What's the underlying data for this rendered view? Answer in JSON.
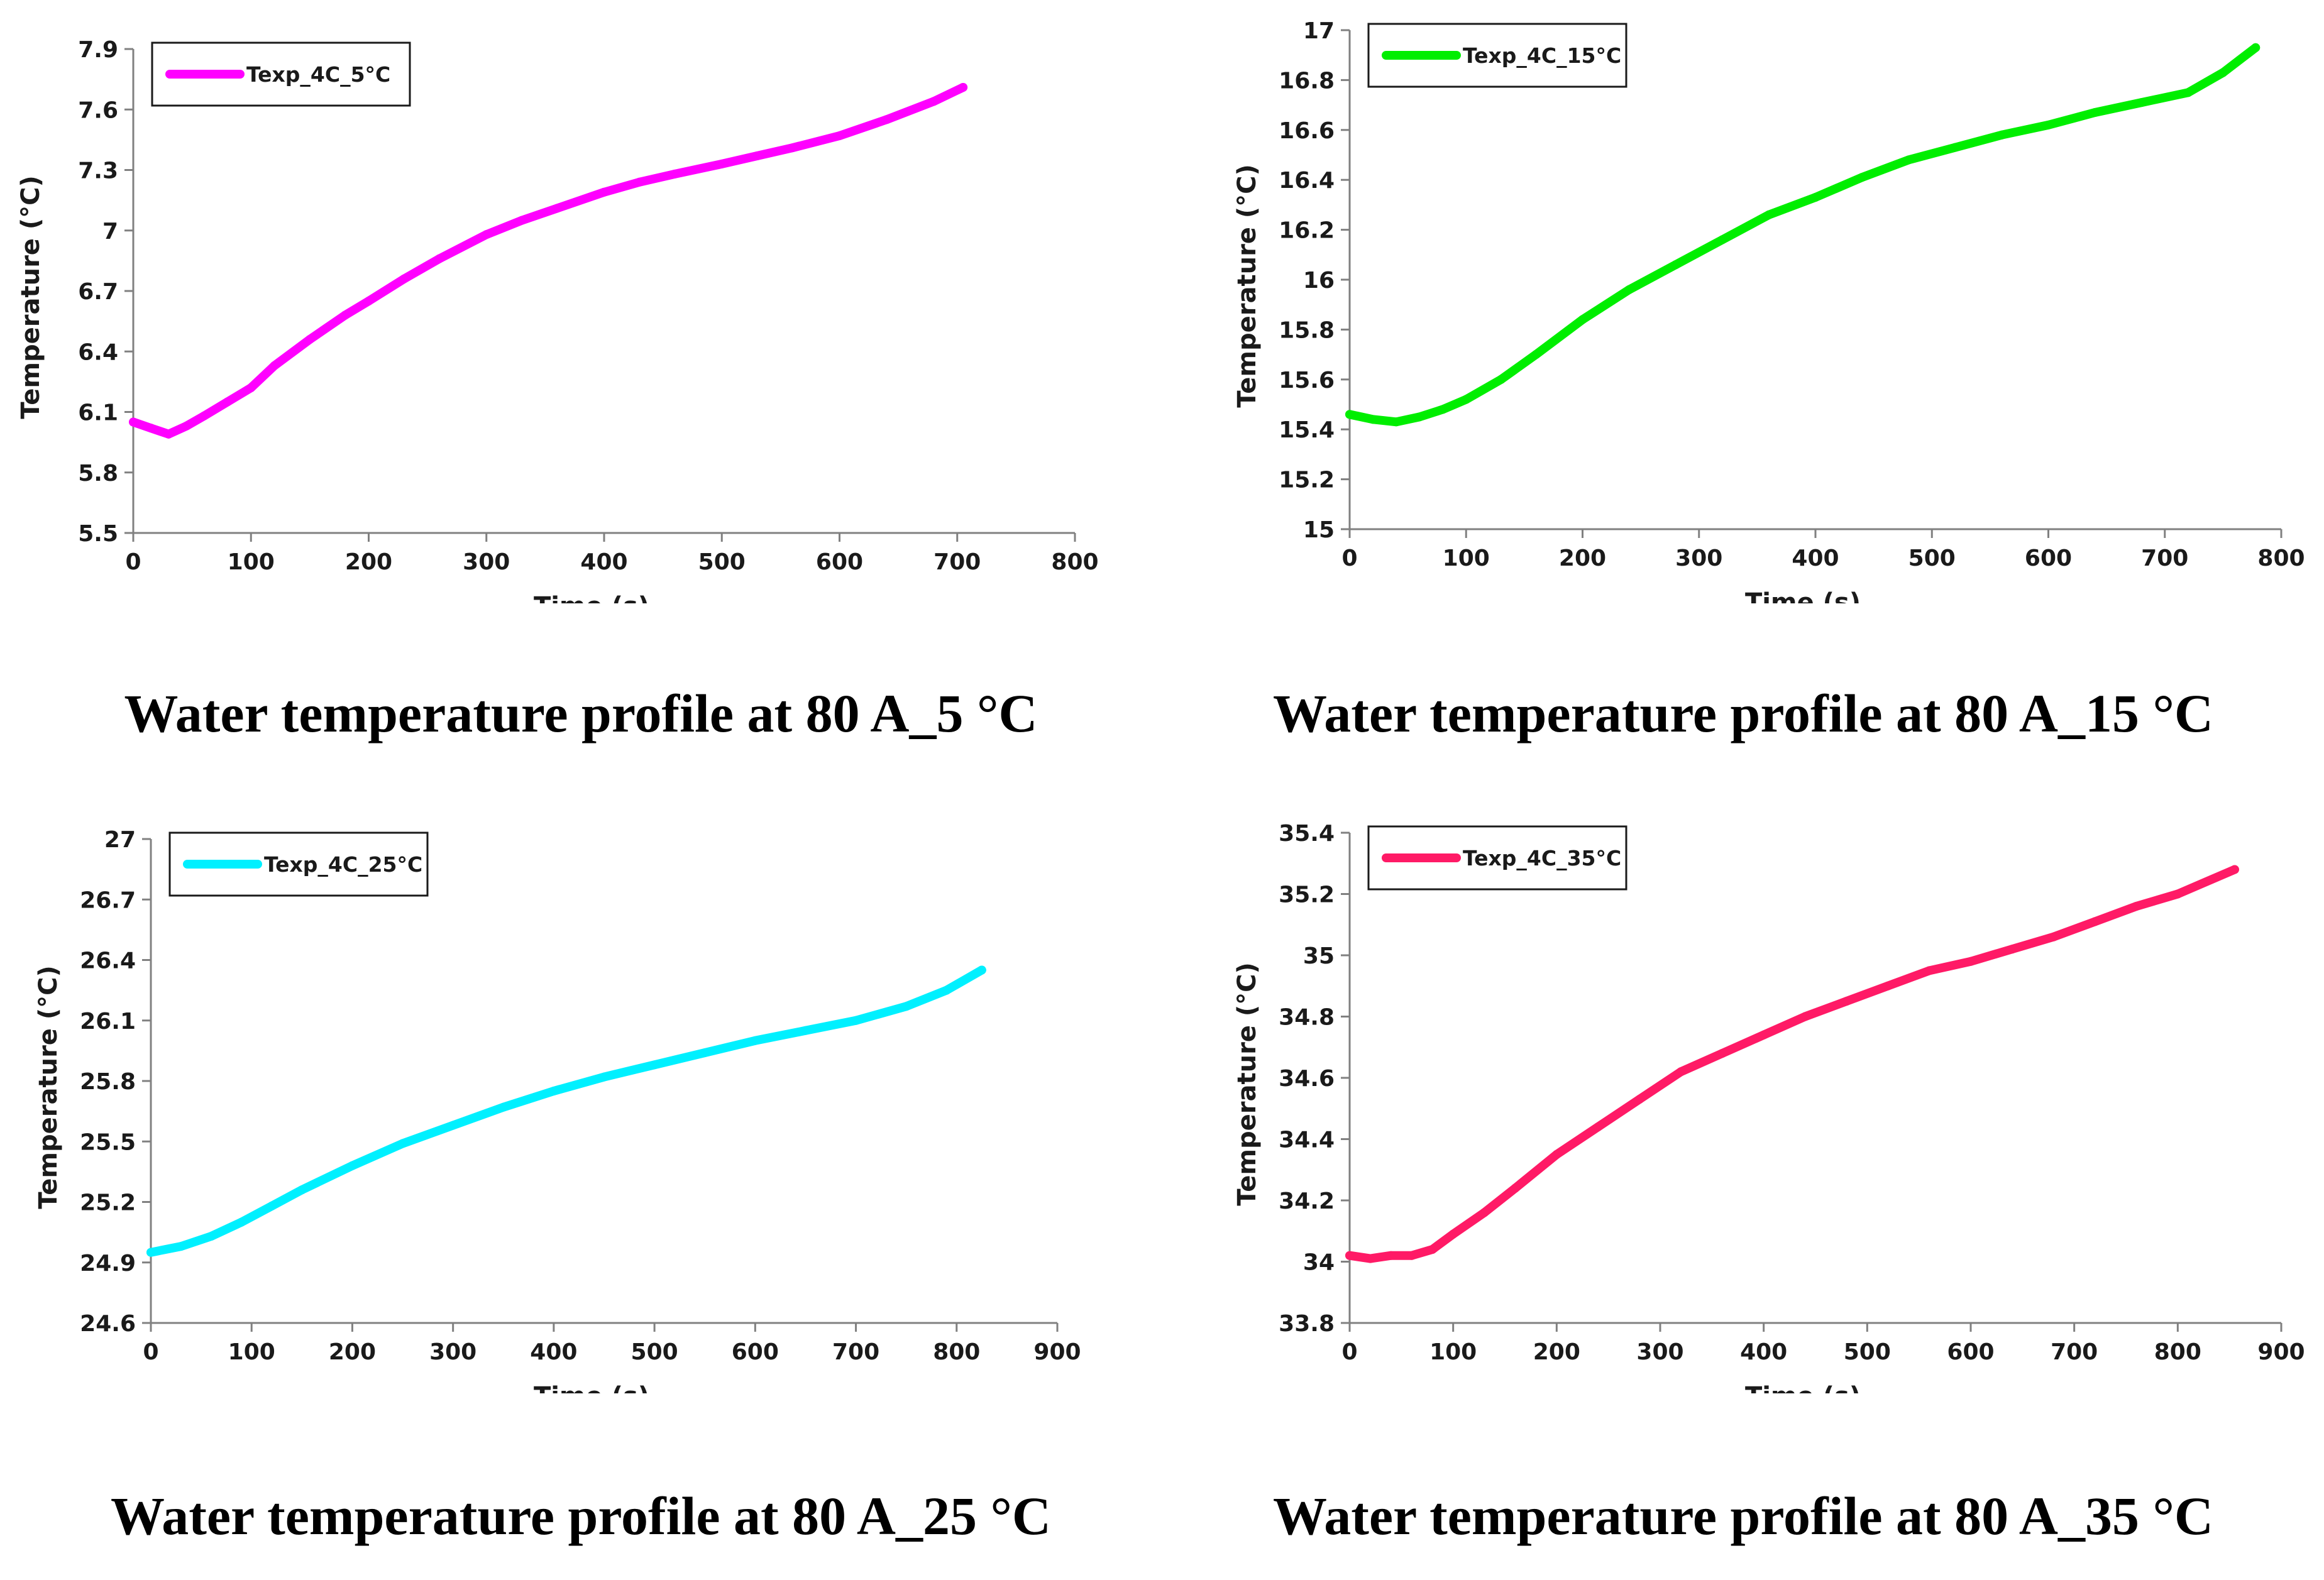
{
  "chart_data": [
    {
      "type": "line",
      "title": "",
      "caption": "Water temperature profile at 80 A_5 °C",
      "xlabel": "Time (s)",
      "ylabel": "Temperature (°C)",
      "xlim": [
        0,
        800
      ],
      "ylim": [
        5.5,
        7.9
      ],
      "x_ticks": [
        0,
        100,
        200,
        300,
        400,
        500,
        600,
        700,
        800
      ],
      "y_ticks": [
        5.5,
        5.8,
        6.1,
        6.4,
        6.7,
        7.0,
        7.3,
        7.6,
        7.9
      ],
      "y_tick_labels": [
        "5.5",
        "5.8",
        "6.1",
        "6.4",
        "6.7",
        "7",
        "7.3",
        "7.6",
        "7.9"
      ],
      "grid": false,
      "legend_position": "top-left",
      "series": [
        {
          "name": "Texp_4C_5°C",
          "color": "#ff00ff",
          "x": [
            0,
            15,
            30,
            45,
            60,
            80,
            100,
            120,
            150,
            180,
            200,
            230,
            260,
            300,
            330,
            360,
            400,
            430,
            460,
            500,
            530,
            560,
            600,
            640,
            680,
            705
          ],
          "y": [
            6.05,
            6.02,
            5.99,
            6.03,
            6.08,
            6.15,
            6.22,
            6.33,
            6.46,
            6.58,
            6.65,
            6.76,
            6.86,
            6.98,
            7.05,
            7.11,
            7.19,
            7.24,
            7.28,
            7.33,
            7.37,
            7.41,
            7.47,
            7.55,
            7.64,
            7.71
          ]
        }
      ]
    },
    {
      "type": "line",
      "title": "",
      "caption": "Water temperature profile at 80 A_15 °C",
      "xlabel": "Time (s)",
      "ylabel": "Temperature (°C)",
      "xlim": [
        0,
        800
      ],
      "ylim": [
        15,
        17
      ],
      "x_ticks": [
        0,
        100,
        200,
        300,
        400,
        500,
        600,
        700,
        800
      ],
      "y_ticks": [
        15,
        15.2,
        15.4,
        15.6,
        15.8,
        16,
        16.2,
        16.4,
        16.6,
        16.8,
        17
      ],
      "y_tick_labels": [
        "15",
        "15.2",
        "15.4",
        "15.6",
        "15.8",
        "16",
        "16.2",
        "16.4",
        "16.6",
        "16.8",
        "17"
      ],
      "grid": false,
      "legend_position": "top-left",
      "series": [
        {
          "name": "Texp_4C_15°C",
          "color": "#00ee00",
          "x": [
            0,
            20,
            40,
            60,
            80,
            100,
            130,
            160,
            200,
            240,
            280,
            320,
            360,
            400,
            440,
            480,
            520,
            560,
            600,
            640,
            680,
            720,
            750,
            778
          ],
          "y": [
            15.46,
            15.44,
            15.43,
            15.45,
            15.48,
            15.52,
            15.6,
            15.7,
            15.84,
            15.96,
            16.06,
            16.16,
            16.26,
            16.33,
            16.41,
            16.48,
            16.53,
            16.58,
            16.62,
            16.67,
            16.71,
            16.75,
            16.83,
            16.93
          ]
        }
      ]
    },
    {
      "type": "line",
      "title": "",
      "caption": "Water temperature profile at 80 A_25 °C",
      "xlabel": "Time (s)",
      "ylabel": "Temperature (°C)",
      "xlim": [
        0,
        900
      ],
      "ylim": [
        24.6,
        27
      ],
      "x_ticks": [
        0,
        100,
        200,
        300,
        400,
        500,
        600,
        700,
        800,
        900
      ],
      "y_ticks": [
        24.6,
        24.9,
        25.2,
        25.5,
        25.8,
        26.1,
        26.4,
        26.7,
        27.0
      ],
      "y_tick_labels": [
        "24.6",
        "24.9",
        "25.2",
        "25.5",
        "25.8",
        "26.1",
        "26.4",
        "26.7",
        "27"
      ],
      "grid": false,
      "legend_position": "top-left",
      "series": [
        {
          "name": "Texp_4C_25°C",
          "color": "#00f0ff",
          "x": [
            0,
            30,
            60,
            90,
            120,
            150,
            200,
            250,
            300,
            350,
            400,
            450,
            500,
            550,
            600,
            650,
            700,
            750,
            790,
            825
          ],
          "y": [
            24.95,
            24.98,
            25.03,
            25.1,
            25.18,
            25.26,
            25.38,
            25.49,
            25.58,
            25.67,
            25.75,
            25.82,
            25.88,
            25.94,
            26.0,
            26.05,
            26.1,
            26.17,
            26.25,
            26.35
          ]
        }
      ]
    },
    {
      "type": "line",
      "title": "",
      "caption": "Water temperature profile at 80 A_35 °C",
      "xlabel": "Time (s)",
      "ylabel": "Temperature (°C)",
      "xlim": [
        0,
        900
      ],
      "ylim": [
        33.8,
        35.4
      ],
      "x_ticks": [
        0,
        100,
        200,
        300,
        400,
        500,
        600,
        700,
        800,
        900
      ],
      "y_ticks": [
        33.8,
        34,
        34.2,
        34.4,
        34.6,
        34.8,
        35,
        35.2,
        35.4
      ],
      "y_tick_labels": [
        "33.8",
        "34",
        "34.2",
        "34.4",
        "34.6",
        "34.8",
        "35",
        "35.2",
        "35.4"
      ],
      "grid": false,
      "legend_position": "top-left",
      "series": [
        {
          "name": "Texp_4C_35°C",
          "color": "#ff1a66",
          "x": [
            0,
            20,
            40,
            60,
            80,
            100,
            130,
            160,
            200,
            240,
            280,
            320,
            360,
            400,
            440,
            480,
            520,
            560,
            600,
            640,
            680,
            720,
            760,
            800,
            855
          ],
          "y": [
            34.02,
            34.01,
            34.02,
            34.02,
            34.04,
            34.09,
            34.16,
            34.24,
            34.35,
            34.44,
            34.53,
            34.62,
            34.68,
            34.74,
            34.8,
            34.85,
            34.9,
            34.95,
            34.98,
            35.02,
            35.06,
            35.11,
            35.16,
            35.2,
            35.28
          ]
        }
      ]
    }
  ]
}
